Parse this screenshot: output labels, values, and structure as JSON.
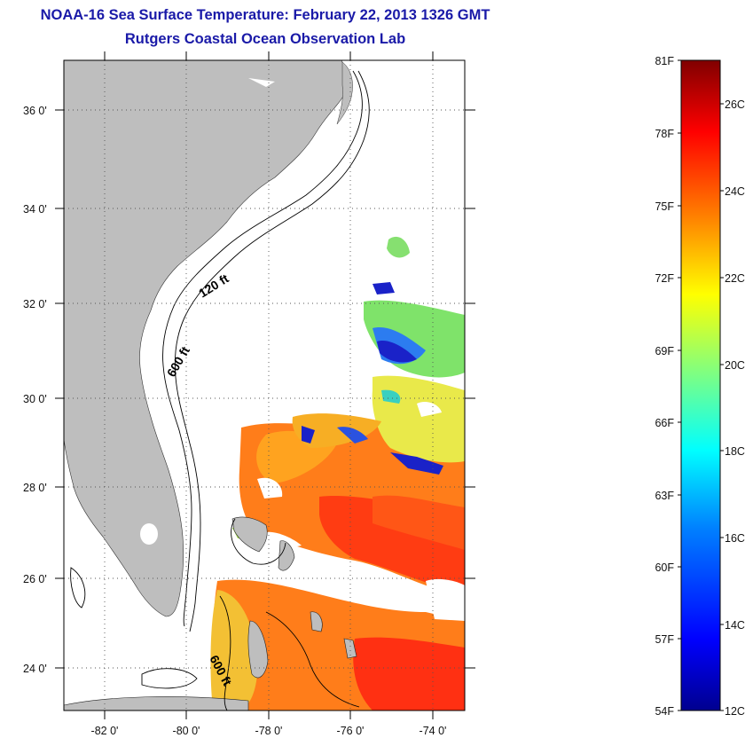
{
  "title": {
    "line1": "NOAA-16 Sea Surface Temperature:  February 22, 2013 1326 GMT",
    "line2": "Rutgers Coastal Ocean Observation Lab"
  },
  "map": {
    "lat_labels": [
      "36 0'",
      "34 0'",
      "32 0'",
      "30 0'",
      "28 0'",
      "26 0'",
      "24 0'"
    ],
    "lon_labels": [
      "-82 0'",
      "-80 0'",
      "-78 0'",
      "-76 0'",
      "-74 0'"
    ],
    "isobath_labels": [
      "120 ft",
      "600 ft",
      "600 ft"
    ],
    "land_color": "#bebebe",
    "grid": "dotted"
  },
  "colorbar": {
    "f_labels": [
      "81F",
      "78F",
      "75F",
      "72F",
      "69F",
      "66F",
      "63F",
      "60F",
      "57F",
      "54F"
    ],
    "c_labels": [
      "26C",
      "24C",
      "22C",
      "20C",
      "18C",
      "16C",
      "14C",
      "12C"
    ],
    "colormap": "jet",
    "colors": [
      "#00008f",
      "#0000ff",
      "#0080ff",
      "#00ffff",
      "#80ff80",
      "#ffff00",
      "#ff8000",
      "#ff0000",
      "#800000"
    ]
  }
}
